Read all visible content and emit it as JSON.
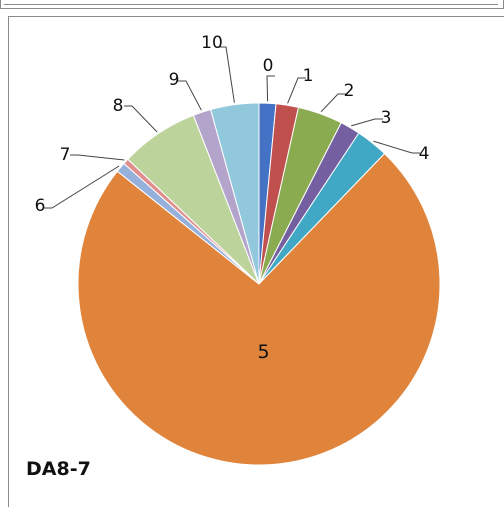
{
  "chart_data": {
    "type": "pie",
    "title": "DA8-7",
    "categories": [
      "0",
      "1",
      "2",
      "3",
      "4",
      "5",
      "6",
      "7",
      "8",
      "9",
      "10"
    ],
    "values": [
      1.5,
      2.0,
      4.0,
      1.8,
      2.9,
      73.5,
      0.9,
      0.5,
      7.0,
      1.6,
      4.3
    ],
    "colors": [
      "#4472c4",
      "#c0504d",
      "#8aab50",
      "#7460a0",
      "#40a8c4",
      "#e0843c",
      "#96b0dc",
      "#e08e8c",
      "#bcd49c",
      "#b3a4cc",
      "#91c8dc"
    ],
    "start_angle_deg": 0,
    "direction": "clockwise",
    "legend": "none",
    "data_labels": "category-name"
  }
}
